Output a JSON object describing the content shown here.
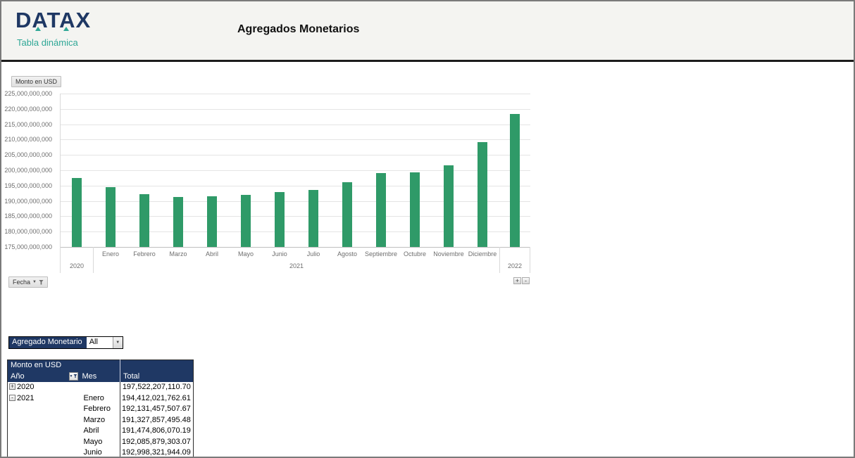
{
  "header": {
    "logo": "DATAX",
    "logo_subtitle": "Tabla dinámica",
    "title": "Agregados Monetarios"
  },
  "chart": {
    "value_field_button": "Monto en USD",
    "axis_field_button": "Fecha",
    "expand_button_label": "+",
    "collapse_button_label": "-"
  },
  "chart_data": {
    "type": "bar",
    "value_field": "Monto en USD",
    "ylim": [
      175000000000,
      225000000000
    ],
    "y_ticks": [
      "225,000,000,000",
      "220,000,000,000",
      "215,000,000,000",
      "210,000,000,000",
      "205,000,000,000",
      "200,000,000,000",
      "195,000,000,000",
      "190,000,000,000",
      "185,000,000,000",
      "180,000,000,000",
      "175,000,000,000"
    ],
    "grid": true,
    "legend": "none",
    "groups": [
      {
        "label": "2020",
        "categories": [
          ""
        ],
        "values": [
          197522207110.7
        ]
      },
      {
        "label": "2021",
        "categories": [
          "Enero",
          "Febrero",
          "Marzo",
          "Abril",
          "Mayo",
          "Junio",
          "Julio",
          "Agosto",
          "Septiembre",
          "Octubre",
          "Noviembre",
          "Diciembre"
        ],
        "values": [
          194412021762.61,
          192131457507.67,
          191327857495.48,
          191474806070.19,
          192085879303.07,
          192998321944.09,
          193500000000,
          196000000000,
          199200000000,
          199400000000,
          201500000000,
          209100000000
        ]
      },
      {
        "label": "2022",
        "categories": [
          ""
        ],
        "values": [
          218400000000
        ]
      }
    ]
  },
  "slicer": {
    "label": "Agregado Monetario",
    "value": "All"
  },
  "pivot_table": {
    "corner_label": "Monto en USD",
    "columns": [
      "Año",
      "Mes",
      "Total"
    ],
    "rows": [
      {
        "expand": "+",
        "year": "2020",
        "month": "",
        "total": "197,522,207,110.70"
      },
      {
        "expand": "-",
        "year": "2021",
        "month": "Enero",
        "total": "194,412,021,762.61"
      },
      {
        "expand": "",
        "year": "",
        "month": "Febrero",
        "total": "192,131,457,507.67"
      },
      {
        "expand": "",
        "year": "",
        "month": "Marzo",
        "total": "191,327,857,495.48"
      },
      {
        "expand": "",
        "year": "",
        "month": "Abril",
        "total": "191,474,806,070.19"
      },
      {
        "expand": "",
        "year": "",
        "month": "Mayo",
        "total": "192,085,879,303.07"
      },
      {
        "expand": "",
        "year": "",
        "month": "Junio",
        "total": "192,998,321,944.09"
      }
    ]
  },
  "colors": {
    "navy": "#1F3864",
    "teal": "#2EA796",
    "bar_green": "#2F9A68"
  }
}
